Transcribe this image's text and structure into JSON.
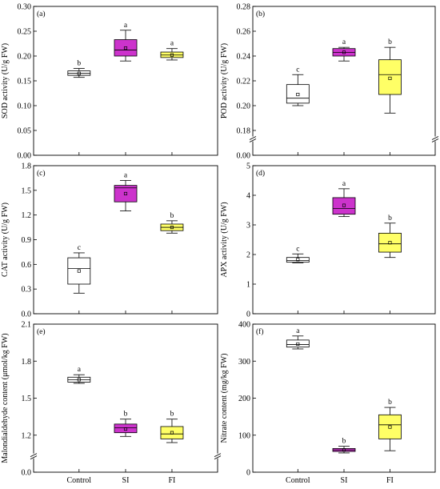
{
  "figure": {
    "groups": [
      "Control",
      "SI",
      "FI"
    ],
    "group_colors": [
      "#ffffff",
      "#cc33cc",
      "#ffff66"
    ],
    "box_edge_color": "#000000"
  },
  "chart_data": [
    {
      "type": "box",
      "panel_tag": "(a)",
      "ylabel": "SOD activity (U/g FW)",
      "ylim": [
        0,
        0.3
      ],
      "yticks": [
        "0.00",
        "0.05",
        "0.10",
        "0.15",
        "0.20",
        "0.25",
        "0.30"
      ],
      "ytick_values": [
        0,
        0.05,
        0.1,
        0.15,
        0.2,
        0.25,
        0.3
      ],
      "axis_break": false,
      "categories": [
        "Control",
        "SI",
        "FI"
      ],
      "boxes": [
        {
          "min": 0.157,
          "q1": 0.161,
          "median": 0.165,
          "q3": 0.17,
          "max": 0.175,
          "mean": 0.165,
          "letter": "b"
        },
        {
          "min": 0.19,
          "q1": 0.2,
          "median": 0.212,
          "q3": 0.233,
          "max": 0.252,
          "mean": 0.216,
          "letter": "a"
        },
        {
          "min": 0.192,
          "q1": 0.197,
          "median": 0.202,
          "q3": 0.208,
          "max": 0.215,
          "mean": 0.202,
          "letter": "a"
        }
      ]
    },
    {
      "type": "box",
      "panel_tag": "(b)",
      "ylabel": "POD activity (U/g FW)",
      "ylim": [
        0.16,
        0.28
      ],
      "yticks": [
        "0.00",
        "0.18",
        "0.20",
        "0.22",
        "0.24",
        "0.26",
        "0.28"
      ],
      "ytick_values": [
        0.16,
        0.18,
        0.2,
        0.22,
        0.24,
        0.26,
        0.28
      ],
      "axis_break": true,
      "categories": [
        "Control",
        "SI",
        "FI"
      ],
      "boxes": [
        {
          "min": 0.2,
          "q1": 0.202,
          "median": 0.206,
          "q3": 0.217,
          "max": 0.225,
          "mean": 0.209,
          "letter": "c"
        },
        {
          "min": 0.236,
          "q1": 0.24,
          "median": 0.243,
          "q3": 0.246,
          "max": 0.247,
          "mean": 0.243,
          "letter": "a"
        },
        {
          "min": 0.194,
          "q1": 0.209,
          "median": 0.225,
          "q3": 0.237,
          "max": 0.247,
          "mean": 0.222,
          "letter": "b"
        }
      ]
    },
    {
      "type": "box",
      "panel_tag": "(c)",
      "ylabel": "CAT activity (U/g FW)",
      "ylim": [
        0.0,
        1.8
      ],
      "yticks": [
        "0.0",
        "0.3",
        "0.6",
        "0.9",
        "1.2",
        "1.5",
        "1.8"
      ],
      "ytick_values": [
        0,
        0.3,
        0.6,
        0.9,
        1.2,
        1.5,
        1.8
      ],
      "axis_break": false,
      "categories": [
        "Control",
        "SI",
        "FI"
      ],
      "boxes": [
        {
          "min": 0.25,
          "q1": 0.36,
          "median": 0.55,
          "q3": 0.68,
          "max": 0.74,
          "mean": 0.52,
          "letter": "c"
        },
        {
          "min": 1.25,
          "q1": 1.36,
          "median": 1.53,
          "q3": 1.56,
          "max": 1.62,
          "mean": 1.46,
          "letter": "a"
        },
        {
          "min": 0.98,
          "q1": 1.01,
          "median": 1.05,
          "q3": 1.09,
          "max": 1.13,
          "mean": 1.05,
          "letter": "b"
        }
      ]
    },
    {
      "type": "box",
      "panel_tag": "(d)",
      "ylabel": "APX activity (U/g FW)",
      "ylim": [
        0,
        5
      ],
      "yticks": [
        "0",
        "1",
        "2",
        "3",
        "4",
        "5"
      ],
      "ytick_values": [
        0,
        1,
        2,
        3,
        4,
        5
      ],
      "axis_break": false,
      "categories": [
        "Control",
        "SI",
        "FI"
      ],
      "boxes": [
        {
          "min": 1.72,
          "q1": 1.74,
          "median": 1.8,
          "q3": 1.9,
          "max": 2.02,
          "mean": 1.83,
          "letter": "c"
        },
        {
          "min": 3.28,
          "q1": 3.36,
          "median": 3.55,
          "q3": 3.92,
          "max": 4.22,
          "mean": 3.66,
          "letter": "a"
        },
        {
          "min": 1.9,
          "q1": 2.08,
          "median": 2.36,
          "q3": 2.72,
          "max": 3.06,
          "mean": 2.4,
          "letter": "b"
        }
      ]
    },
    {
      "type": "box",
      "panel_tag": "(e)",
      "ylabel": "Malondialdehyde content (μmol/kg FW)",
      "ylim": [
        0.9,
        2.1
      ],
      "yticks": [
        "0.0",
        "1.2",
        "1.5",
        "1.8",
        "2.1"
      ],
      "ytick_values": [
        0.9,
        1.2,
        1.5,
        1.8,
        2.1
      ],
      "axis_break": true,
      "categories": [
        "Control",
        "SI",
        "FI"
      ],
      "boxes": [
        {
          "min": 1.62,
          "q1": 1.63,
          "median": 1.65,
          "q3": 1.67,
          "max": 1.69,
          "mean": 1.65,
          "letter": "a"
        },
        {
          "min": 1.19,
          "q1": 1.22,
          "median": 1.26,
          "q3": 1.29,
          "max": 1.33,
          "mean": 1.25,
          "letter": "b"
        },
        {
          "min": 1.14,
          "q1": 1.17,
          "median": 1.21,
          "q3": 1.27,
          "max": 1.33,
          "mean": 1.22,
          "letter": "b"
        }
      ]
    },
    {
      "type": "box",
      "panel_tag": "(f)",
      "ylabel": "Nitrate content (mg/kg FW)",
      "ylim": [
        0,
        400
      ],
      "yticks": [
        "0",
        "100",
        "200",
        "300",
        "400"
      ],
      "ytick_values": [
        0,
        100,
        200,
        300,
        400
      ],
      "axis_break": false,
      "categories": [
        "Control",
        "SI",
        "FI"
      ],
      "boxes": [
        {
          "min": 333,
          "q1": 338,
          "median": 345,
          "q3": 357,
          "max": 368,
          "mean": 346,
          "letter": "a"
        },
        {
          "min": 52,
          "q1": 56,
          "median": 60,
          "q3": 64,
          "max": 70,
          "mean": 60,
          "letter": "b"
        },
        {
          "min": 58,
          "q1": 90,
          "median": 128,
          "q3": 155,
          "max": 175,
          "mean": 122,
          "letter": "b"
        }
      ]
    }
  ]
}
